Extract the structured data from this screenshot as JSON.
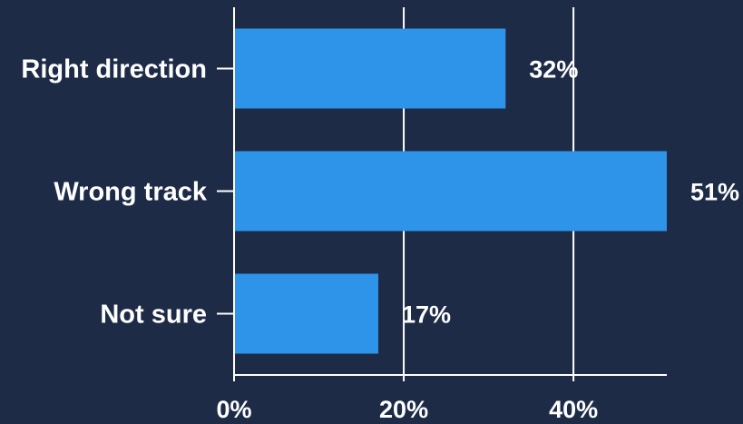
{
  "colors": {
    "background": "#1d2b47",
    "bar": "#2d94ea",
    "grid": "#ffffff",
    "text": "#ffffff"
  },
  "chart_data": {
    "type": "bar",
    "orientation": "horizontal",
    "categories": [
      "Right direction",
      "Wrong track",
      "Not sure"
    ],
    "values": [
      32,
      51,
      17
    ],
    "value_labels": [
      "32%",
      "51%",
      "17%"
    ],
    "xlim": [
      0,
      51
    ],
    "x_ticks": [
      0,
      20,
      40
    ],
    "x_tick_labels": [
      "0%",
      "20%",
      "40%"
    ],
    "grid": true,
    "title": "",
    "xlabel": "",
    "ylabel": ""
  }
}
